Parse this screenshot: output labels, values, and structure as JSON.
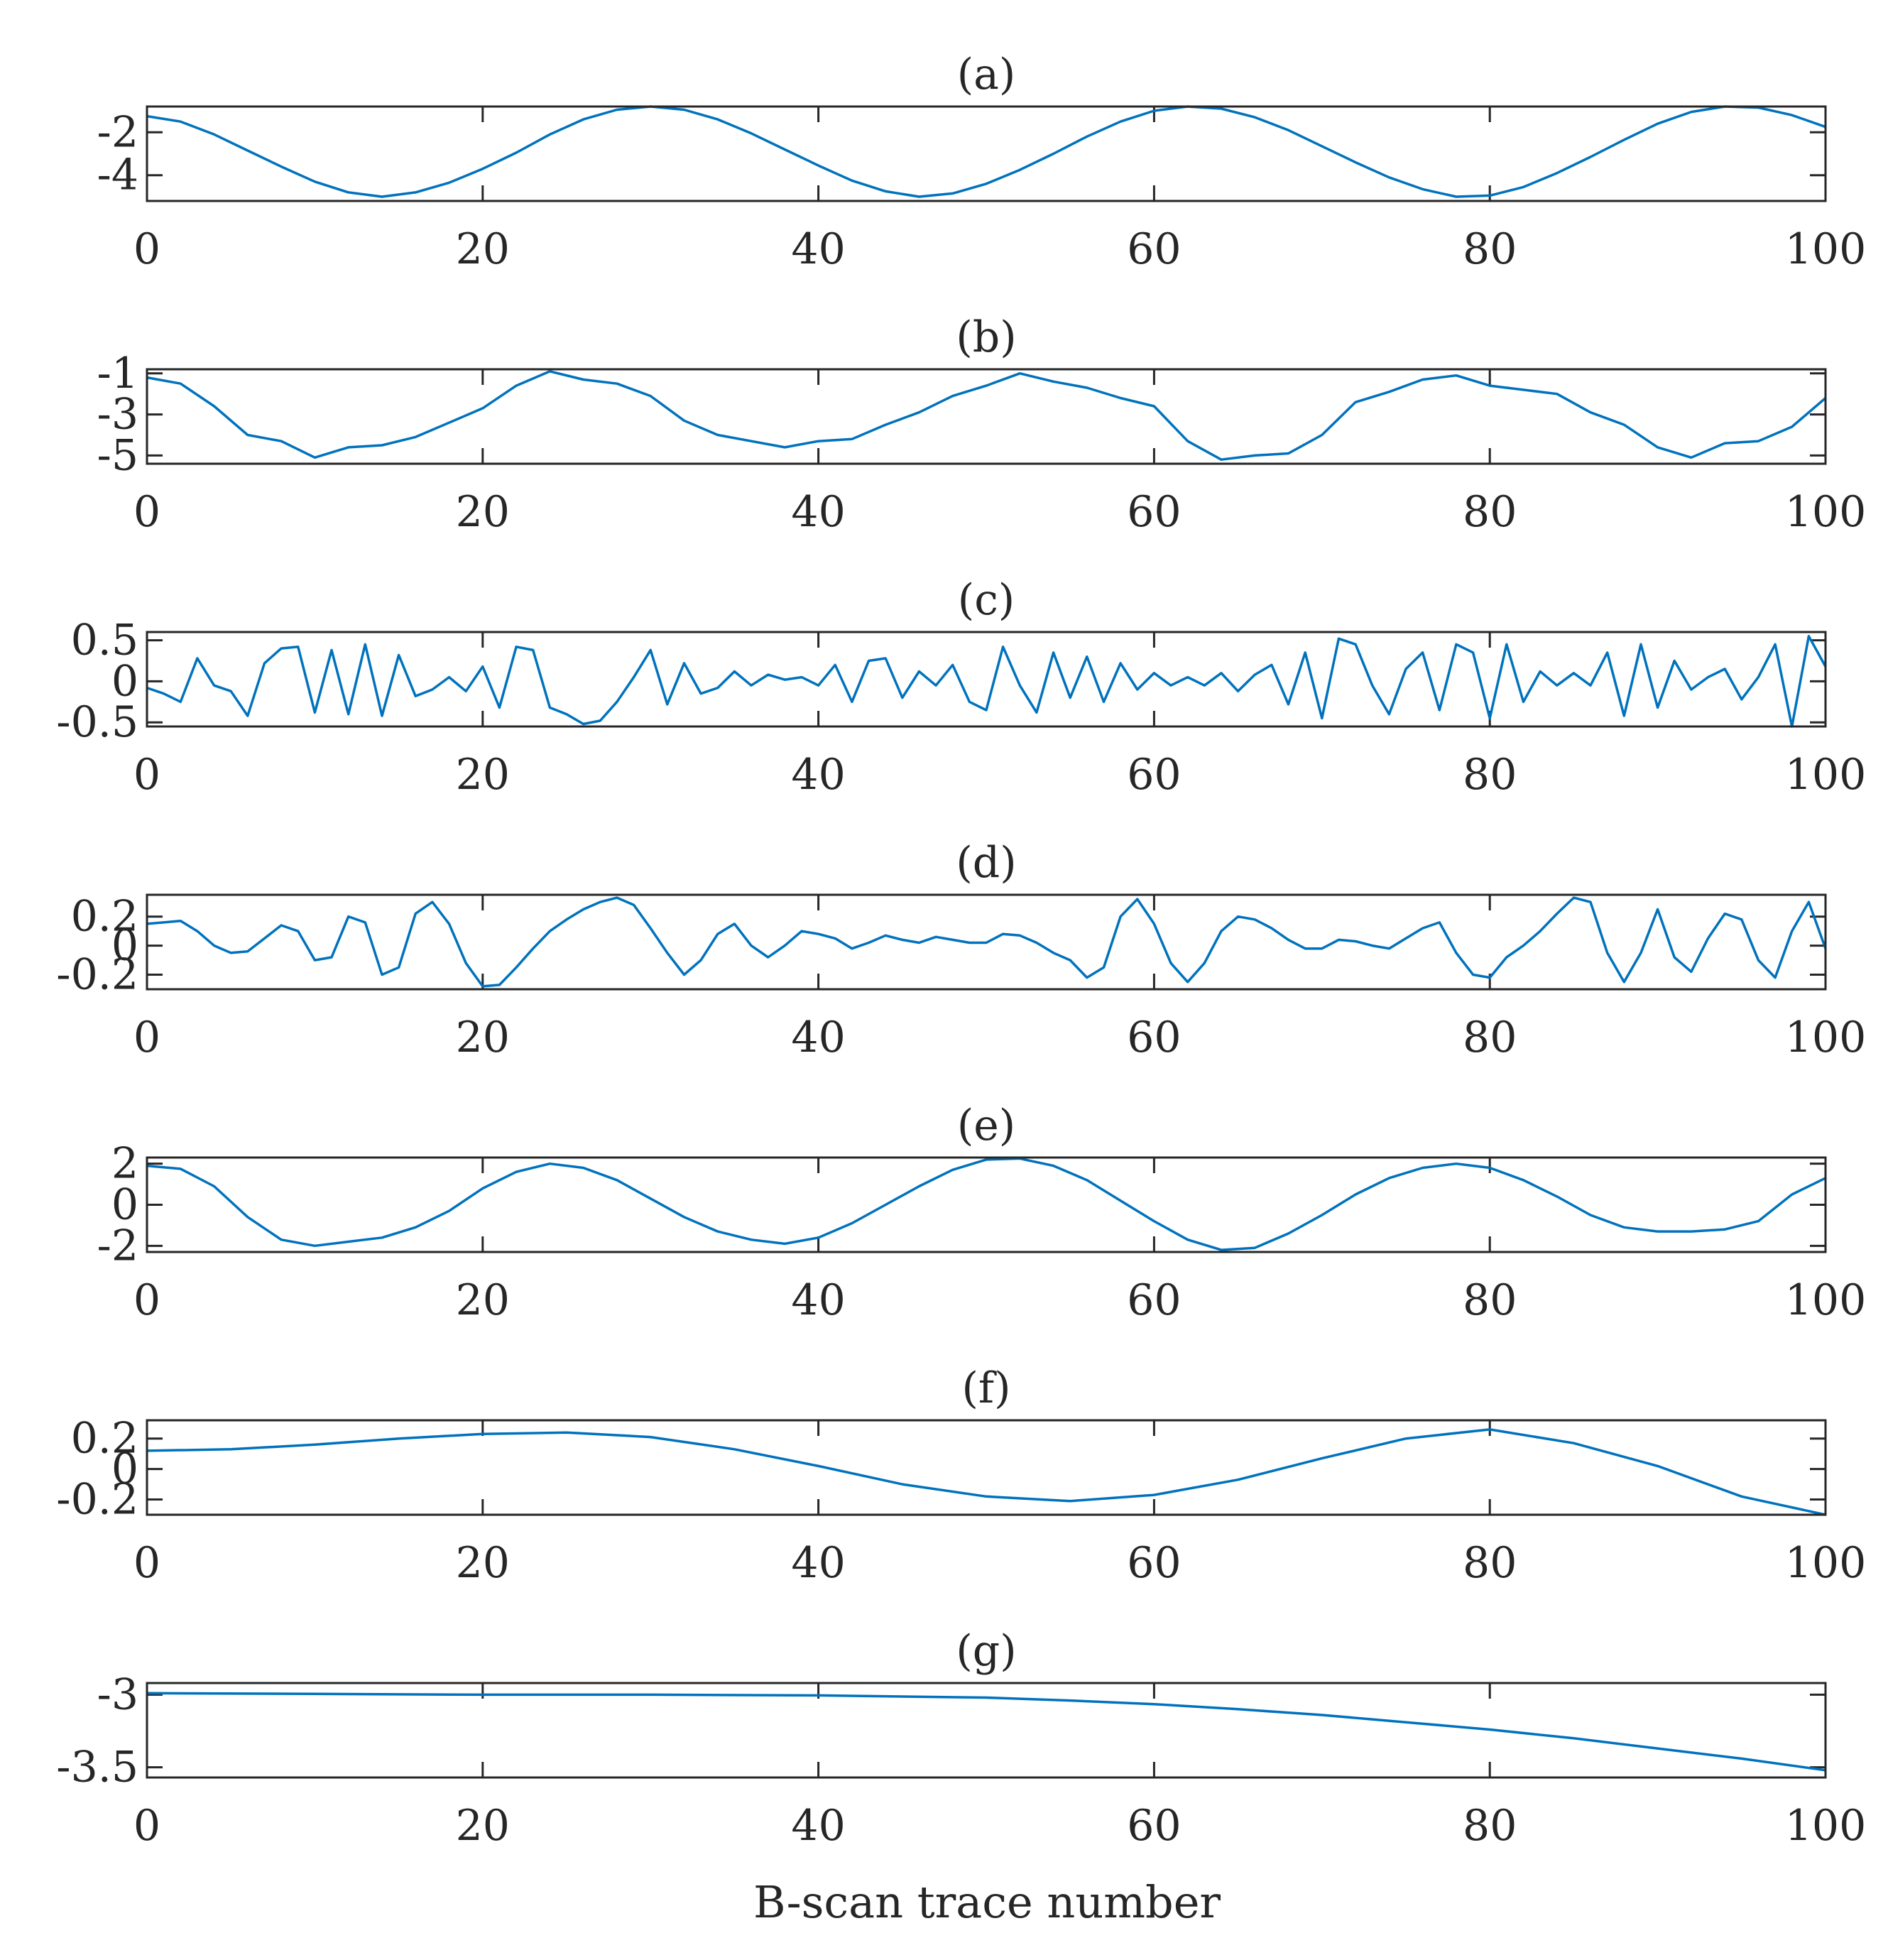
{
  "chart_data": [
    {
      "type": "line",
      "title": "(a)",
      "xlim": [
        0,
        100
      ],
      "xticks": [
        0,
        20,
        40,
        60,
        80,
        100
      ],
      "ylim": [
        -5.2,
        -0.8
      ],
      "yticks": [
        -2,
        -4
      ],
      "ytick_labels": [
        "-2",
        "-4"
      ],
      "series": [
        {
          "name": "(a)",
          "x": [
            0,
            2,
            4,
            6,
            8,
            10,
            12,
            14,
            16,
            18,
            20,
            22,
            24,
            26,
            28,
            30,
            32,
            34,
            36,
            38,
            40,
            42,
            44,
            46,
            48,
            50,
            52,
            54,
            56,
            58,
            60,
            62,
            64,
            66,
            68,
            70,
            72,
            74,
            76,
            78,
            80,
            82,
            84,
            86,
            88,
            90,
            92,
            94,
            96,
            98,
            100
          ],
          "y": [
            -1.25,
            -1.5,
            -2.1,
            -2.85,
            -3.6,
            -4.3,
            -4.8,
            -5.0,
            -4.8,
            -4.35,
            -3.7,
            -2.95,
            -2.1,
            -1.4,
            -0.95,
            -0.8,
            -0.95,
            -1.4,
            -2.05,
            -2.8,
            -3.55,
            -4.25,
            -4.75,
            -5.0,
            -4.85,
            -4.4,
            -3.75,
            -3.0,
            -2.2,
            -1.5,
            -1.0,
            -0.8,
            -0.9,
            -1.3,
            -1.9,
            -2.65,
            -3.4,
            -4.1,
            -4.65,
            -5.0,
            -4.95,
            -4.55,
            -3.9,
            -3.15,
            -2.35,
            -1.6,
            -1.05,
            -0.8,
            -0.85,
            -1.2,
            -1.75
          ]
        }
      ]
    },
    {
      "type": "line",
      "title": "(b)",
      "xlim": [
        0,
        100
      ],
      "xticks": [
        0,
        20,
        40,
        60,
        80,
        100
      ],
      "ylim": [
        -5.4,
        -0.8
      ],
      "yticks": [
        -1,
        -3,
        -5
      ],
      "ytick_labels": [
        "-1",
        "-3",
        "-5"
      ],
      "series": [
        {
          "name": "(b)",
          "x": [
            0,
            2,
            4,
            6,
            8,
            10,
            12,
            14,
            16,
            18,
            20,
            22,
            24,
            26,
            28,
            30,
            32,
            34,
            36,
            38,
            40,
            42,
            44,
            46,
            48,
            50,
            52,
            54,
            56,
            58,
            60,
            62,
            64,
            66,
            68,
            70,
            72,
            74,
            76,
            78,
            80,
            82,
            84,
            86,
            88,
            90,
            92,
            94,
            96,
            98,
            100
          ],
          "y": [
            -1.2,
            -1.5,
            -2.6,
            -4.0,
            -4.3,
            -5.1,
            -4.6,
            -4.5,
            -4.1,
            -3.4,
            -2.7,
            -1.6,
            -0.9,
            -1.3,
            -1.5,
            -2.1,
            -3.3,
            -4.0,
            -4.3,
            -4.6,
            -4.3,
            -4.2,
            -3.5,
            -2.9,
            -2.1,
            -1.6,
            -1.0,
            -1.4,
            -1.7,
            -2.2,
            -2.6,
            -4.3,
            -5.2,
            -5.0,
            -4.9,
            -4.0,
            -2.4,
            -1.9,
            -1.3,
            -1.1,
            -1.6,
            -1.8,
            -2.0,
            -2.9,
            -3.5,
            -4.6,
            -5.1,
            -4.4,
            -4.3,
            -3.6,
            -2.2
          ]
        }
      ]
    },
    {
      "type": "line",
      "title": "(c)",
      "xlim": [
        0,
        100
      ],
      "xticks": [
        0,
        20,
        40,
        60,
        80,
        100
      ],
      "ylim": [
        -0.55,
        0.6
      ],
      "yticks": [
        0.5,
        0,
        -0.5
      ],
      "ytick_labels": [
        "0.5",
        "0",
        "-0.5"
      ],
      "series": [
        {
          "name": "(c)",
          "x": [
            0,
            1,
            2,
            3,
            4,
            5,
            6,
            7,
            8,
            9,
            10,
            11,
            12,
            13,
            14,
            15,
            16,
            17,
            18,
            19,
            20,
            21,
            22,
            23,
            24,
            25,
            26,
            27,
            28,
            29,
            30,
            31,
            32,
            33,
            34,
            35,
            36,
            37,
            38,
            39,
            40,
            41,
            42,
            43,
            44,
            45,
            46,
            47,
            48,
            49,
            50,
            51,
            52,
            53,
            54,
            55,
            56,
            57,
            58,
            59,
            60,
            61,
            62,
            63,
            64,
            65,
            66,
            67,
            68,
            69,
            70,
            71,
            72,
            73,
            74,
            75,
            76,
            77,
            78,
            79,
            80,
            81,
            82,
            83,
            84,
            85,
            86,
            87,
            88,
            89,
            90,
            91,
            92,
            93,
            94,
            95,
            96,
            97,
            98,
            99,
            100
          ],
          "y": [
            -0.08,
            -0.15,
            -0.25,
            0.28,
            -0.05,
            -0.12,
            -0.42,
            0.22,
            0.4,
            0.42,
            -0.38,
            0.38,
            -0.4,
            0.45,
            -0.42,
            0.32,
            -0.18,
            -0.1,
            0.05,
            -0.12,
            0.18,
            -0.32,
            0.42,
            0.38,
            -0.32,
            -0.4,
            -0.52,
            -0.48,
            -0.25,
            0.05,
            0.38,
            -0.28,
            0.22,
            -0.15,
            -0.08,
            0.12,
            -0.05,
            0.08,
            0.02,
            0.05,
            -0.05,
            0.2,
            -0.25,
            0.25,
            0.28,
            -0.2,
            0.12,
            -0.05,
            0.2,
            -0.25,
            -0.35,
            0.42,
            -0.05,
            -0.38,
            0.35,
            -0.2,
            0.3,
            -0.25,
            0.22,
            -0.1,
            0.1,
            -0.05,
            0.05,
            -0.05,
            0.1,
            -0.12,
            0.08,
            0.2,
            -0.28,
            0.35,
            -0.45,
            0.52,
            0.45,
            -0.05,
            -0.4,
            0.15,
            0.35,
            -0.35,
            0.45,
            0.35,
            -0.45,
            0.45,
            -0.25,
            0.12,
            -0.05,
            0.1,
            -0.05,
            0.35,
            -0.42,
            0.45,
            -0.32,
            0.25,
            -0.1,
            0.05,
            0.15,
            -0.22,
            0.05,
            0.45,
            -0.55,
            0.55,
            0.18
          ]
        }
      ]
    },
    {
      "type": "line",
      "title": "(d)",
      "xlim": [
        0,
        100
      ],
      "xticks": [
        0,
        20,
        40,
        60,
        80,
        100
      ],
      "ylim": [
        -0.3,
        0.35
      ],
      "yticks": [
        0.2,
        0,
        -0.2
      ],
      "ytick_labels": [
        "0.2",
        "0",
        "-0.2"
      ],
      "series": [
        {
          "name": "(d)",
          "x": [
            0,
            1,
            2,
            3,
            4,
            5,
            6,
            7,
            8,
            9,
            10,
            11,
            12,
            13,
            14,
            15,
            16,
            17,
            18,
            19,
            20,
            21,
            22,
            23,
            24,
            25,
            26,
            27,
            28,
            29,
            30,
            31,
            32,
            33,
            34,
            35,
            36,
            37,
            38,
            39,
            40,
            41,
            42,
            43,
            44,
            45,
            46,
            47,
            48,
            49,
            50,
            51,
            52,
            53,
            54,
            55,
            56,
            57,
            58,
            59,
            60,
            61,
            62,
            63,
            64,
            65,
            66,
            67,
            68,
            69,
            70,
            71,
            72,
            73,
            74,
            75,
            76,
            77,
            78,
            79,
            80,
            81,
            82,
            83,
            84,
            85,
            86,
            87,
            88,
            89,
            90,
            91,
            92,
            93,
            94,
            95,
            96,
            97,
            98,
            99,
            100
          ],
          "y": [
            0.15,
            0.16,
            0.17,
            0.1,
            0.0,
            -0.05,
            -0.04,
            0.05,
            0.14,
            0.1,
            -0.1,
            -0.08,
            0.2,
            0.16,
            -0.2,
            -0.15,
            0.22,
            0.3,
            0.15,
            -0.12,
            -0.28,
            -0.27,
            -0.15,
            -0.02,
            0.1,
            0.18,
            0.25,
            0.3,
            0.33,
            0.28,
            0.12,
            -0.05,
            -0.2,
            -0.1,
            0.08,
            0.15,
            0.0,
            -0.08,
            0.0,
            0.1,
            0.08,
            0.05,
            -0.02,
            0.02,
            0.07,
            0.04,
            0.02,
            0.06,
            0.04,
            0.02,
            0.02,
            0.08,
            0.07,
            0.02,
            -0.05,
            -0.1,
            -0.22,
            -0.15,
            0.2,
            0.32,
            0.15,
            -0.12,
            -0.25,
            -0.12,
            0.1,
            0.2,
            0.18,
            0.12,
            0.04,
            -0.02,
            -0.02,
            0.04,
            0.03,
            0.0,
            -0.02,
            0.05,
            0.12,
            0.16,
            -0.05,
            -0.2,
            -0.22,
            -0.08,
            0.0,
            0.1,
            0.22,
            0.33,
            0.3,
            -0.05,
            -0.25,
            -0.05,
            0.25,
            -0.08,
            -0.18,
            0.05,
            0.22,
            0.18,
            -0.1,
            -0.22,
            0.1,
            0.3,
            -0.02
          ]
        }
      ]
    },
    {
      "type": "line",
      "title": "(e)",
      "xlim": [
        0,
        100
      ],
      "xticks": [
        0,
        20,
        40,
        60,
        80,
        100
      ],
      "ylim": [
        -2.3,
        2.3
      ],
      "yticks": [
        2,
        0,
        -2
      ],
      "ytick_labels": [
        "2",
        "0",
        "-2"
      ],
      "series": [
        {
          "name": "(e)",
          "x": [
            0,
            2,
            4,
            6,
            8,
            10,
            12,
            14,
            16,
            18,
            20,
            22,
            24,
            26,
            28,
            30,
            32,
            34,
            36,
            38,
            40,
            42,
            44,
            46,
            48,
            50,
            52,
            54,
            56,
            58,
            60,
            62,
            64,
            66,
            68,
            70,
            72,
            74,
            76,
            78,
            80,
            82,
            84,
            86,
            88,
            90,
            92,
            94,
            96,
            98,
            100
          ],
          "y": [
            1.9,
            1.75,
            0.9,
            -0.6,
            -1.7,
            -2.0,
            -1.8,
            -1.6,
            -1.1,
            -0.3,
            0.8,
            1.6,
            2.0,
            1.8,
            1.2,
            0.3,
            -0.6,
            -1.3,
            -1.7,
            -1.9,
            -1.6,
            -0.9,
            0.0,
            0.9,
            1.7,
            2.2,
            2.25,
            1.9,
            1.2,
            0.2,
            -0.8,
            -1.7,
            -2.2,
            -2.1,
            -1.4,
            -0.5,
            0.5,
            1.3,
            1.8,
            2.0,
            1.8,
            1.2,
            0.4,
            -0.5,
            -1.1,
            -1.3,
            -1.3,
            -1.2,
            -0.8,
            0.5,
            1.3
          ]
        }
      ]
    },
    {
      "type": "line",
      "title": "(f)",
      "xlim": [
        0,
        100
      ],
      "xticks": [
        0,
        20,
        40,
        60,
        80,
        100
      ],
      "ylim": [
        -0.3,
        0.32
      ],
      "yticks": [
        0.2,
        0,
        -0.2
      ],
      "ytick_labels": [
        "0.2",
        "0",
        "-0.2"
      ],
      "series": [
        {
          "name": "(f)",
          "x": [
            0,
            5,
            10,
            15,
            20,
            25,
            30,
            35,
            40,
            45,
            50,
            55,
            60,
            65,
            70,
            75,
            80,
            85,
            90,
            95,
            100
          ],
          "y": [
            0.12,
            0.13,
            0.16,
            0.2,
            0.23,
            0.24,
            0.21,
            0.13,
            0.02,
            -0.1,
            -0.18,
            -0.21,
            -0.17,
            -0.07,
            0.07,
            0.2,
            0.26,
            0.17,
            0.02,
            -0.18,
            -0.3
          ]
        }
      ]
    },
    {
      "type": "line",
      "title": "(g)",
      "xlim": [
        0,
        100
      ],
      "xticks": [
        0,
        20,
        40,
        60,
        80,
        100
      ],
      "xlabel": "B-scan trace number",
      "ylim": [
        -3.57,
        -2.92
      ],
      "yticks": [
        -3,
        -3.5
      ],
      "ytick_labels": [
        "-3",
        "-3.5"
      ],
      "series": [
        {
          "name": "(g)",
          "x": [
            0,
            10,
            20,
            30,
            40,
            50,
            55,
            60,
            65,
            70,
            75,
            80,
            85,
            90,
            95,
            100
          ],
          "y": [
            -2.99,
            -2.995,
            -3.0,
            -3.0,
            -3.005,
            -3.02,
            -3.04,
            -3.065,
            -3.1,
            -3.14,
            -3.19,
            -3.24,
            -3.3,
            -3.37,
            -3.44,
            -3.52
          ]
        }
      ]
    }
  ]
}
